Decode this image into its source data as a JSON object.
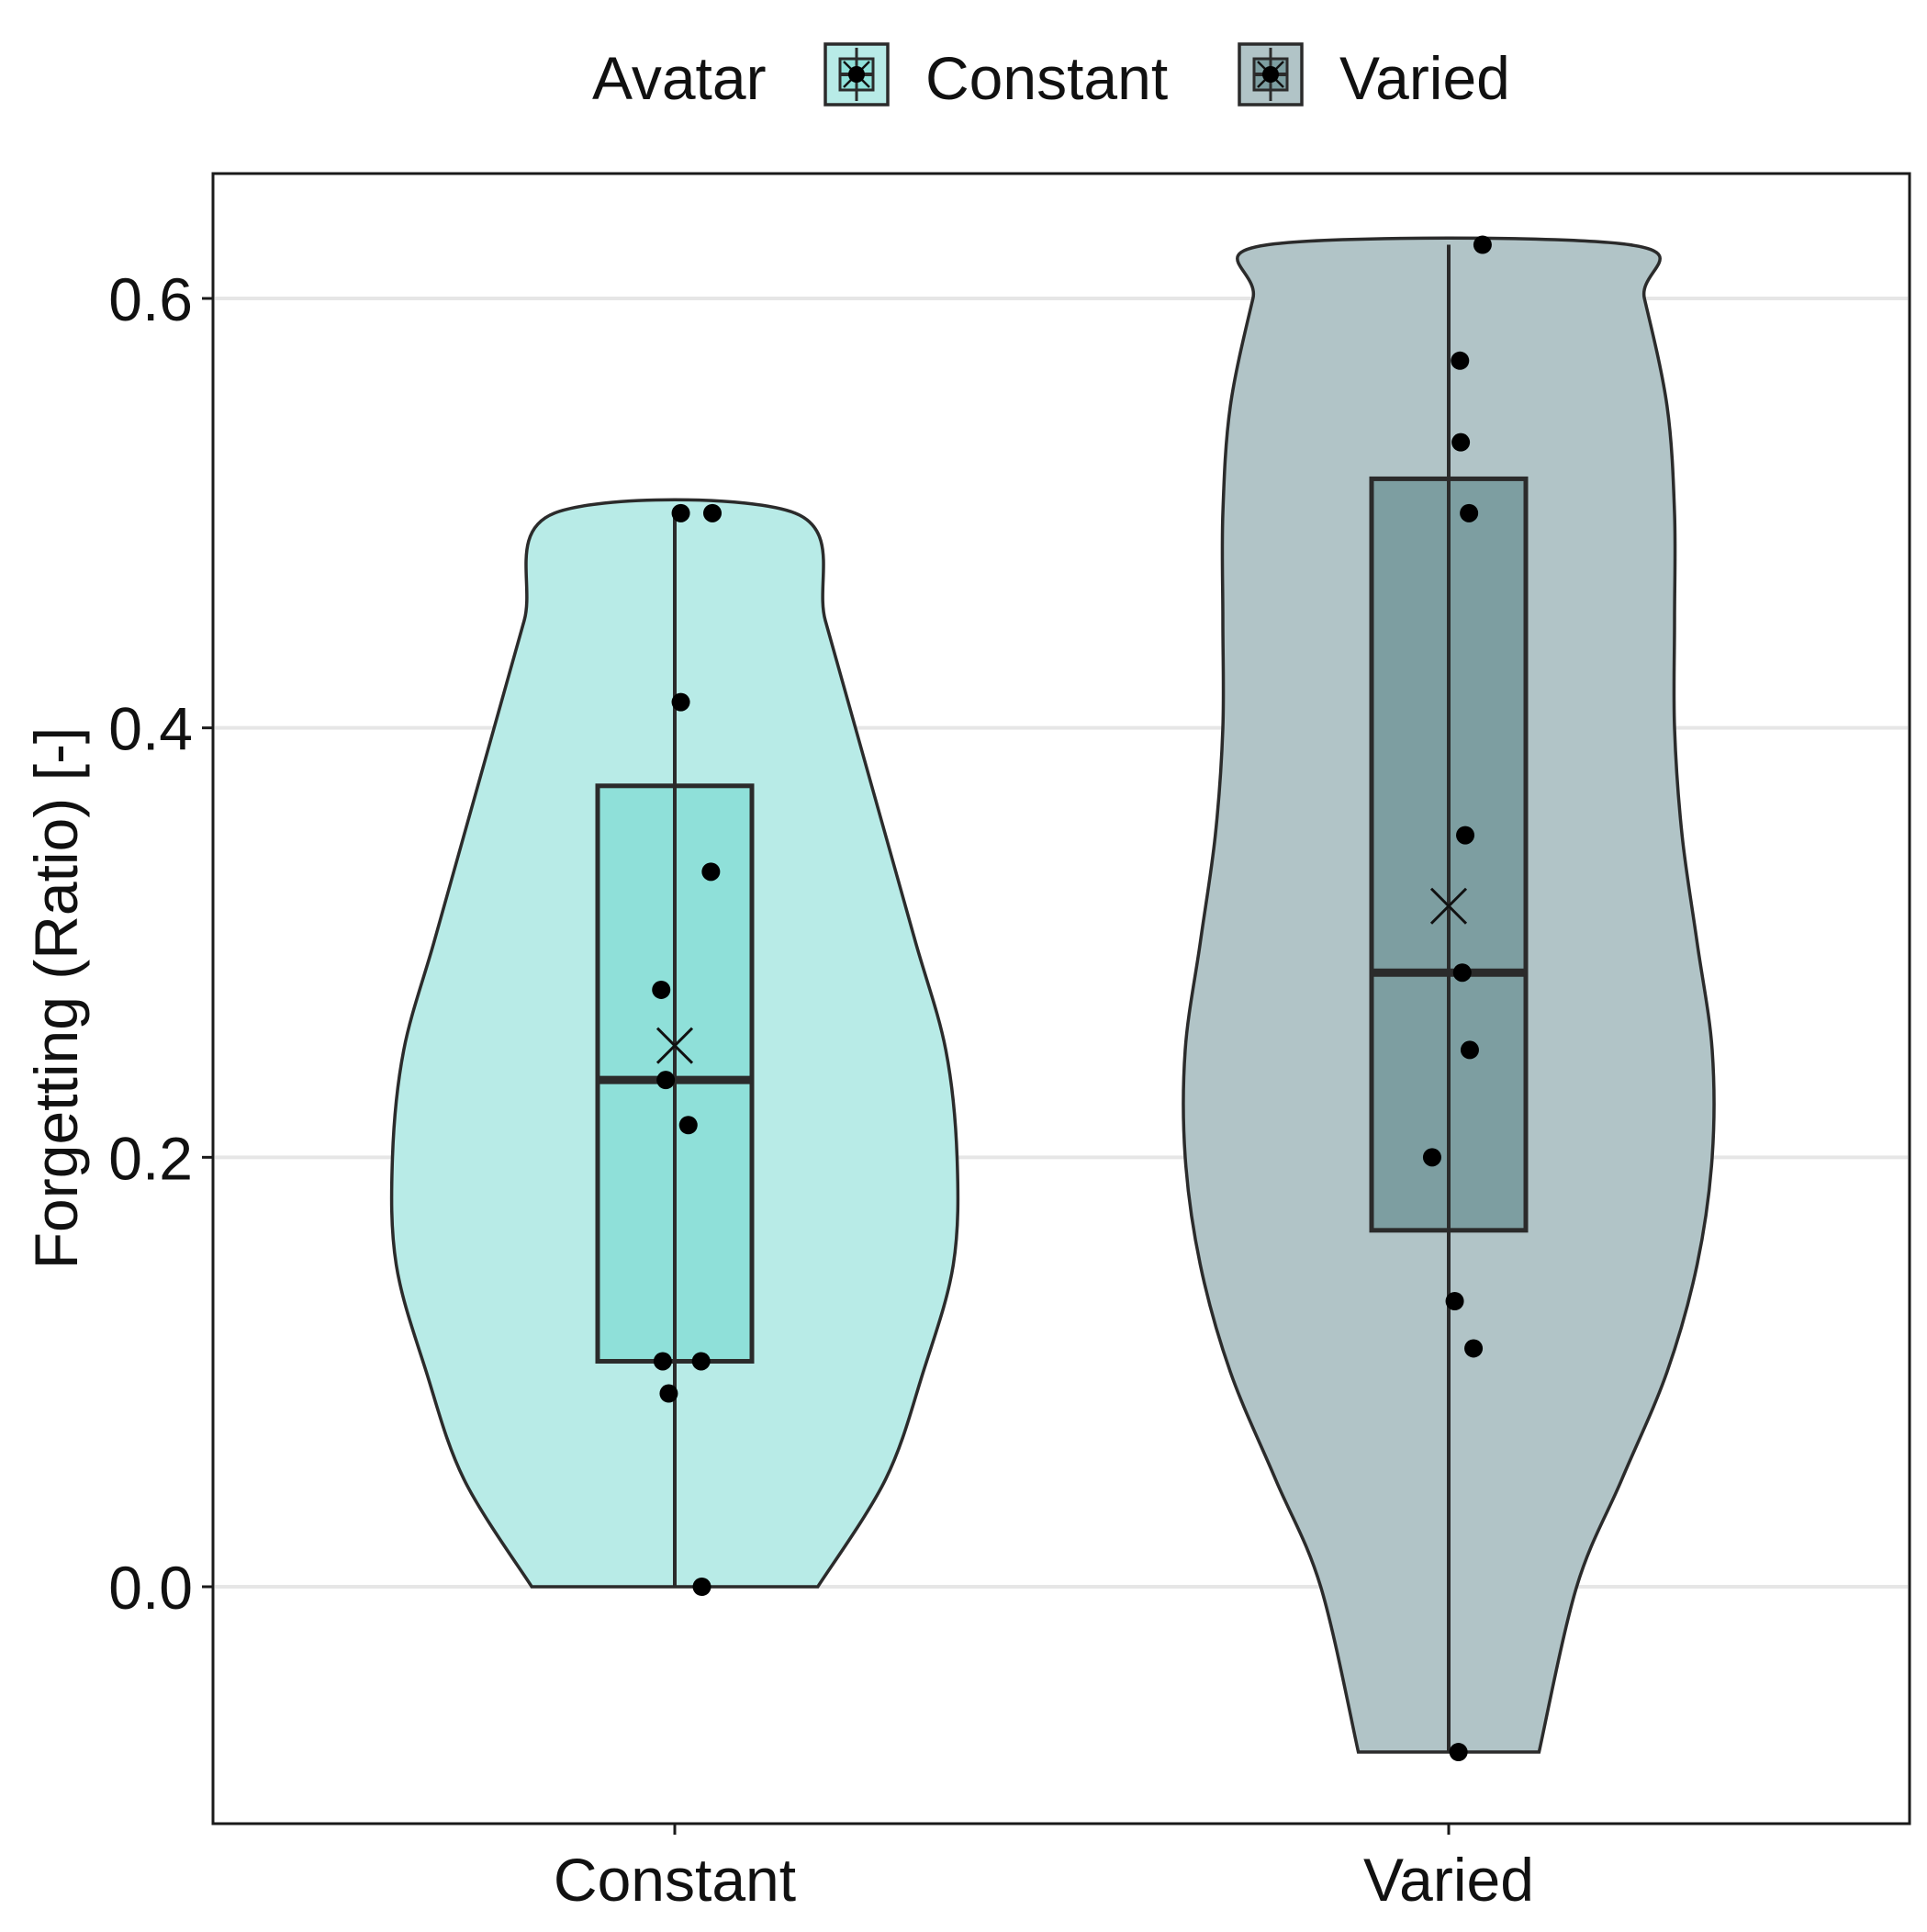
{
  "chart_data": {
    "type": "violin",
    "title": "",
    "xlabel": "",
    "ylabel": "Forgetting (Ratio) [-]",
    "ylim": [
      -0.11,
      0.66
    ],
    "y_ticks": [
      0.0,
      0.2,
      0.4,
      0.6
    ],
    "y_tick_labels": [
      "0.0",
      "0.2",
      "0.4",
      "0.6"
    ],
    "grid": "horizontal major gridlines",
    "legend": {
      "title": "Avatar",
      "placement": "top",
      "entries": [
        "Constant",
        "Varied"
      ]
    },
    "categories": [
      "Constant",
      "Varied"
    ],
    "series": [
      {
        "name": "Constant",
        "fill_color": "#8fe0d9",
        "violin_color": "#b8ebe7",
        "violin_min": 0.0,
        "violin_max": 0.5,
        "violin_profile": [
          [
            0.0,
            0.19
          ],
          [
            0.05,
            0.28
          ],
          [
            0.1,
            0.33
          ],
          [
            0.15,
            0.37
          ],
          [
            0.2,
            0.375
          ],
          [
            0.25,
            0.36
          ],
          [
            0.3,
            0.32
          ],
          [
            0.35,
            0.28
          ],
          [
            0.4,
            0.24
          ],
          [
            0.45,
            0.2
          ],
          [
            0.5,
            0.16
          ]
        ],
        "box": {
          "q1": 0.105,
          "median": 0.236,
          "q3": 0.373,
          "whisker_low": 0.0,
          "whisker_high": 0.5
        },
        "mean": 0.252,
        "points": [
          {
            "x_offset": 0.008,
            "y": 0.5
          },
          {
            "x_offset": 0.05,
            "y": 0.5
          },
          {
            "x_offset": 0.008,
            "y": 0.412
          },
          {
            "x_offset": 0.048,
            "y": 0.333
          },
          {
            "x_offset": -0.018,
            "y": 0.278
          },
          {
            "x_offset": -0.012,
            "y": 0.236
          },
          {
            "x_offset": 0.018,
            "y": 0.215
          },
          {
            "x_offset": -0.016,
            "y": 0.105
          },
          {
            "x_offset": 0.035,
            "y": 0.105
          },
          {
            "x_offset": -0.008,
            "y": 0.09
          },
          {
            "x_offset": 0.036,
            "y": 0.0
          }
        ]
      },
      {
        "name": "Varied",
        "fill_color": "#7d9ea1",
        "violin_color": "#b1c4c7",
        "violin_min": -0.077,
        "violin_max": 0.625,
        "violin_profile": [
          [
            -0.077,
            0.12
          ],
          [
            0.0,
            0.17
          ],
          [
            0.05,
            0.23
          ],
          [
            0.1,
            0.29
          ],
          [
            0.15,
            0.33
          ],
          [
            0.2,
            0.35
          ],
          [
            0.25,
            0.35
          ],
          [
            0.3,
            0.33
          ],
          [
            0.35,
            0.31
          ],
          [
            0.4,
            0.3
          ],
          [
            0.45,
            0.3
          ],
          [
            0.5,
            0.3
          ],
          [
            0.55,
            0.29
          ],
          [
            0.6,
            0.26
          ],
          [
            0.625,
            0.24
          ]
        ],
        "box": {
          "q1": 0.166,
          "median": 0.286,
          "q3": 0.516,
          "whisker_low": -0.077,
          "whisker_high": 0.625
        },
        "mean": 0.317,
        "points": [
          {
            "x_offset": 0.045,
            "y": 0.625
          },
          {
            "x_offset": 0.015,
            "y": 0.571
          },
          {
            "x_offset": 0.016,
            "y": 0.533
          },
          {
            "x_offset": 0.027,
            "y": 0.5
          },
          {
            "x_offset": 0.022,
            "y": 0.35
          },
          {
            "x_offset": 0.018,
            "y": 0.286
          },
          {
            "x_offset": 0.028,
            "y": 0.25
          },
          {
            "x_offset": -0.022,
            "y": 0.2
          },
          {
            "x_offset": 0.008,
            "y": 0.133
          },
          {
            "x_offset": 0.033,
            "y": 0.111
          },
          {
            "x_offset": 0.013,
            "y": -0.077
          }
        ]
      }
    ]
  }
}
